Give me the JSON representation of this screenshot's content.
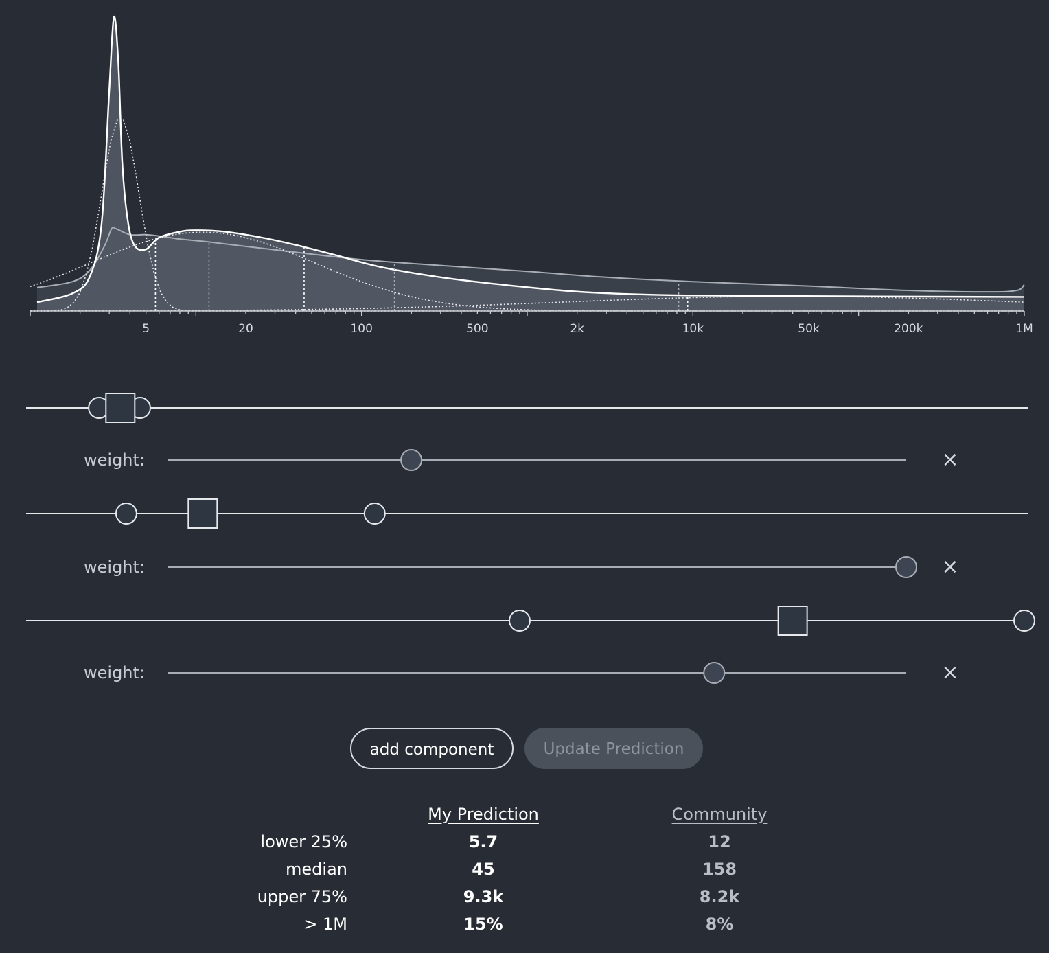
{
  "chart_data": {
    "type": "area",
    "x_scale": "log",
    "x_range": [
      1,
      1000000
    ],
    "tick_labels": [
      "5",
      "20",
      "100",
      "500",
      "2k",
      "10k",
      "50k",
      "200k",
      "1M"
    ],
    "tick_values": [
      5,
      20,
      100,
      500,
      2000,
      10000,
      50000,
      200000,
      1000000
    ],
    "series": [
      {
        "name": "My Prediction",
        "points": [
          [
            1.1,
            0.03
          ],
          [
            1.8,
            0.06
          ],
          [
            2.3,
            0.12
          ],
          [
            2.7,
            0.3
          ],
          [
            3.0,
            0.75
          ],
          [
            3.2,
            1.0
          ],
          [
            3.4,
            0.85
          ],
          [
            3.6,
            0.5
          ],
          [
            3.9,
            0.3
          ],
          [
            4.3,
            0.22
          ],
          [
            5.0,
            0.21
          ],
          [
            6,
            0.25
          ],
          [
            8,
            0.27
          ],
          [
            10,
            0.275
          ],
          [
            15,
            0.27
          ],
          [
            25,
            0.25
          ],
          [
            40,
            0.225
          ],
          [
            70,
            0.19
          ],
          [
            130,
            0.15
          ],
          [
            300,
            0.115
          ],
          [
            700,
            0.09
          ],
          [
            2000,
            0.066
          ],
          [
            6000,
            0.055
          ],
          [
            20000,
            0.052
          ],
          [
            100000,
            0.05
          ],
          [
            1000000,
            0.048
          ]
        ]
      },
      {
        "name": "Community",
        "points": [
          [
            1.1,
            0.08
          ],
          [
            1.8,
            0.1
          ],
          [
            2.3,
            0.14
          ],
          [
            2.8,
            0.22
          ],
          [
            3.1,
            0.28
          ],
          [
            3.3,
            0.28
          ],
          [
            4,
            0.26
          ],
          [
            5,
            0.26
          ],
          [
            6,
            0.255
          ],
          [
            8,
            0.245
          ],
          [
            12,
            0.235
          ],
          [
            20,
            0.22
          ],
          [
            40,
            0.2
          ],
          [
            100,
            0.175
          ],
          [
            300,
            0.155
          ],
          [
            1000,
            0.135
          ],
          [
            3000,
            0.115
          ],
          [
            10000,
            0.1
          ],
          [
            50000,
            0.085
          ],
          [
            200000,
            0.07
          ],
          [
            600000,
            0.065
          ],
          [
            900000,
            0.07
          ],
          [
            1000000,
            0.09
          ]
        ]
      }
    ],
    "components": [
      {
        "low": 2.6,
        "center": 3.5,
        "high": 4.6,
        "weight": 0.33
      },
      {
        "low": 3.8,
        "center": 11,
        "high": 120,
        "weight": 1.0
      },
      {
        "low": 900,
        "center": 40000,
        "high": 1000000,
        "weight": 0.74
      }
    ],
    "mine_quartile_lines": [
      5.7,
      45,
      9300
    ],
    "community_quartile_lines": [
      12,
      158,
      8200
    ],
    "colors": {
      "background": "#282d35",
      "mine_fill": "#555c67",
      "mine_line": "#ffffff",
      "community_fill": "#3a404a",
      "community_line": "#a9adb5"
    }
  },
  "controls": {
    "weight_label": "weight:",
    "remove_label": "×"
  },
  "buttons": {
    "add": "add component",
    "update": "Update Prediction"
  },
  "stats": {
    "head_mine": "My Prediction",
    "head_community": "Community",
    "rows": [
      {
        "label": "lower 25%",
        "mine": "5.7",
        "community": "12"
      },
      {
        "label": "median",
        "mine": "45",
        "community": "158"
      },
      {
        "label": "upper 75%",
        "mine": "9.3k",
        "community": "8.2k"
      },
      {
        "label": "> 1M",
        "mine": "15%",
        "community": "8%"
      }
    ]
  }
}
